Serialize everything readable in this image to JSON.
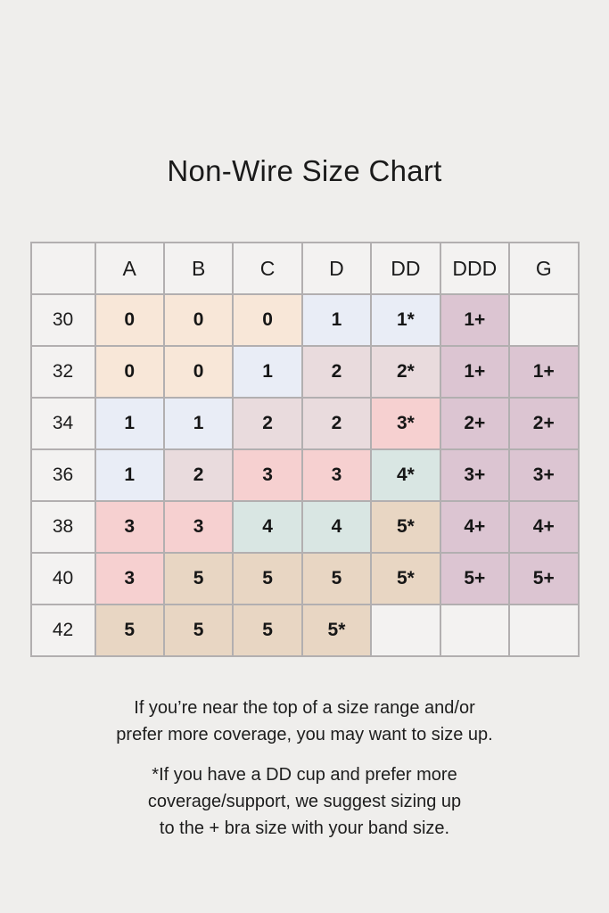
{
  "title": "Non-Wire Size Chart",
  "table": {
    "column_headers": [
      "",
      "A",
      "B",
      "C",
      "D",
      "DD",
      "DDD",
      "G"
    ],
    "row_labels": [
      "30",
      "32",
      "34",
      "36",
      "38",
      "40",
      "42"
    ],
    "cells": [
      [
        "0",
        "0",
        "0",
        "1",
        "1*",
        "1+",
        ""
      ],
      [
        "0",
        "0",
        "1",
        "2",
        "2*",
        "1+",
        "1+"
      ],
      [
        "1",
        "1",
        "2",
        "2",
        "3*",
        "2+",
        "2+"
      ],
      [
        "1",
        "2",
        "3",
        "3",
        "4*",
        "3+",
        "3+"
      ],
      [
        "3",
        "3",
        "4",
        "4",
        "5*",
        "4+",
        "4+"
      ],
      [
        "3",
        "5",
        "5",
        "5",
        "5*",
        "5+",
        "5+"
      ],
      [
        "5",
        "5",
        "5",
        "5*",
        "",
        "",
        ""
      ]
    ]
  },
  "cell_colors": {
    "0": "#f8e7d8",
    "1": "#e9edf6",
    "2": "#e9dbdd",
    "3": "#f6d0d0",
    "4": "#d9e6e3",
    "5": "#e8d6c3",
    "plus": "#dcc5d2",
    "empty": "#f3f2f1"
  },
  "notes": [
    "If you’re near the top of a size range and/or\nprefer more coverage, you may want to size up.",
    "*If you have a DD cup and prefer more\ncoverage/support, we suggest sizing up\nto the + bra size with your band size."
  ]
}
